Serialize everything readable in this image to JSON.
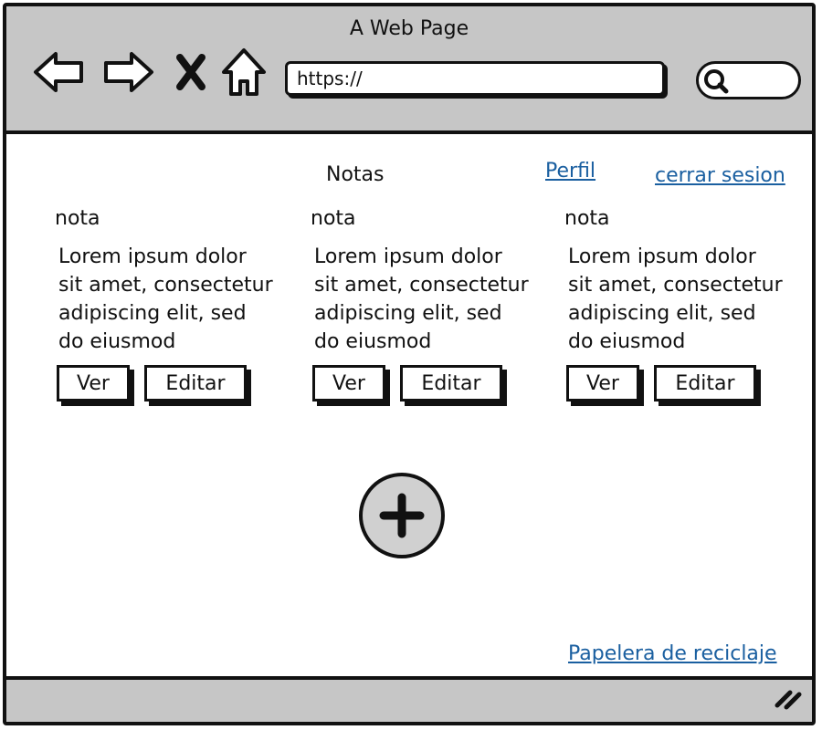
{
  "window": {
    "title": "A Web Page"
  },
  "browser": {
    "url": "https://",
    "icons": [
      "back-arrow-icon",
      "forward-arrow-icon",
      "close-x-icon",
      "home-icon",
      "search-icon",
      "resize-grip-icon"
    ]
  },
  "header": {
    "title": "Notas",
    "profile_link": "Perfil",
    "logout_link": "cerrar sesion"
  },
  "notes": [
    {
      "title": "nota",
      "body": "Lorem ipsum dolor sit amet, consectetur adipiscing elit, sed do eiusmod",
      "view_label": "Ver",
      "edit_label": "Editar"
    },
    {
      "title": "nota",
      "body": "Lorem ipsum dolor sit amet, consectetur adipiscing elit, sed do eiusmod",
      "view_label": "Ver",
      "edit_label": "Editar"
    },
    {
      "title": "nota",
      "body": "Lorem ipsum dolor sit amet, consectetur adipiscing elit, sed do eiusmod",
      "view_label": "Ver",
      "edit_label": "Editar"
    }
  ],
  "actions": {
    "add_icon": "plus-icon"
  },
  "footer": {
    "trash_link": "Papelera de reciclaje"
  },
  "colors": {
    "chrome": "#c6c6c6",
    "link": "#1a5fa0",
    "add_button": "#d0d0d0"
  }
}
